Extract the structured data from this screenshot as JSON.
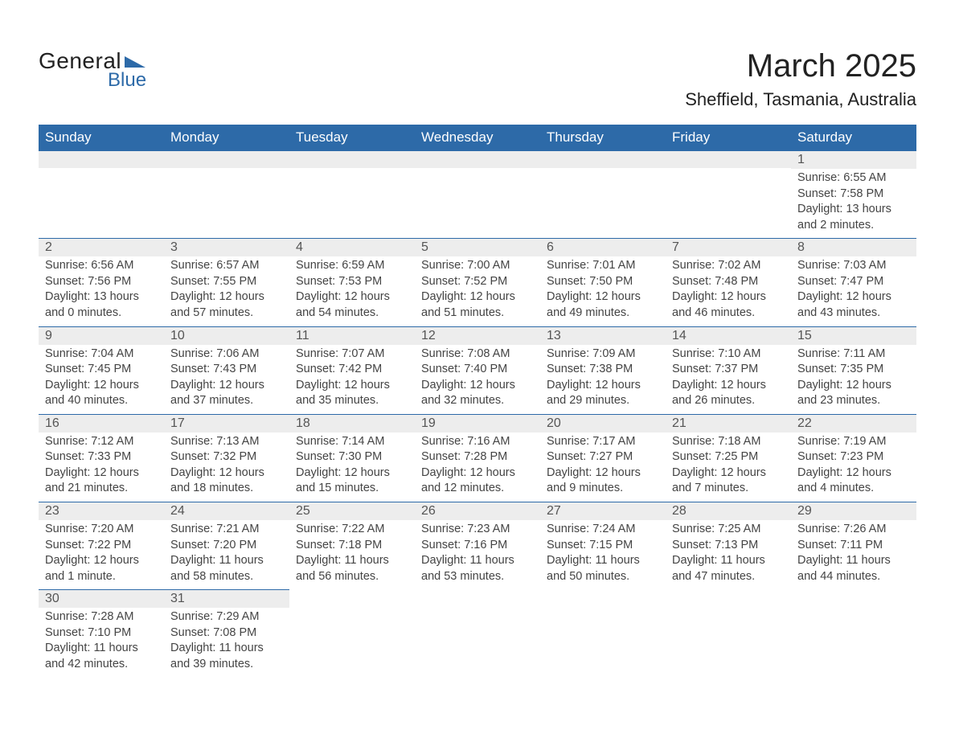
{
  "brand": {
    "text_general": "General",
    "text_blue": "Blue",
    "logo_color": "#2d6aa8"
  },
  "header": {
    "month_title": "March 2025",
    "location": "Sheffield, Tasmania, Australia"
  },
  "colors": {
    "header_bg": "#2d6aa8",
    "header_text": "#ffffff",
    "bar_bg": "#ededed",
    "body_bg": "#ffffff",
    "text": "#444444",
    "divider": "#2d6aa8"
  },
  "calendar": {
    "type": "table",
    "columns": [
      "Sunday",
      "Monday",
      "Tuesday",
      "Wednesday",
      "Thursday",
      "Friday",
      "Saturday"
    ],
    "first_weekday_index": 6,
    "days": [
      {
        "n": 1,
        "sunrise": "6:55 AM",
        "sunset": "7:58 PM",
        "daylight": "13 hours and 2 minutes."
      },
      {
        "n": 2,
        "sunrise": "6:56 AM",
        "sunset": "7:56 PM",
        "daylight": "13 hours and 0 minutes."
      },
      {
        "n": 3,
        "sunrise": "6:57 AM",
        "sunset": "7:55 PM",
        "daylight": "12 hours and 57 minutes."
      },
      {
        "n": 4,
        "sunrise": "6:59 AM",
        "sunset": "7:53 PM",
        "daylight": "12 hours and 54 minutes."
      },
      {
        "n": 5,
        "sunrise": "7:00 AM",
        "sunset": "7:52 PM",
        "daylight": "12 hours and 51 minutes."
      },
      {
        "n": 6,
        "sunrise": "7:01 AM",
        "sunset": "7:50 PM",
        "daylight": "12 hours and 49 minutes."
      },
      {
        "n": 7,
        "sunrise": "7:02 AM",
        "sunset": "7:48 PM",
        "daylight": "12 hours and 46 minutes."
      },
      {
        "n": 8,
        "sunrise": "7:03 AM",
        "sunset": "7:47 PM",
        "daylight": "12 hours and 43 minutes."
      },
      {
        "n": 9,
        "sunrise": "7:04 AM",
        "sunset": "7:45 PM",
        "daylight": "12 hours and 40 minutes."
      },
      {
        "n": 10,
        "sunrise": "7:06 AM",
        "sunset": "7:43 PM",
        "daylight": "12 hours and 37 minutes."
      },
      {
        "n": 11,
        "sunrise": "7:07 AM",
        "sunset": "7:42 PM",
        "daylight": "12 hours and 35 minutes."
      },
      {
        "n": 12,
        "sunrise": "7:08 AM",
        "sunset": "7:40 PM",
        "daylight": "12 hours and 32 minutes."
      },
      {
        "n": 13,
        "sunrise": "7:09 AM",
        "sunset": "7:38 PM",
        "daylight": "12 hours and 29 minutes."
      },
      {
        "n": 14,
        "sunrise": "7:10 AM",
        "sunset": "7:37 PM",
        "daylight": "12 hours and 26 minutes."
      },
      {
        "n": 15,
        "sunrise": "7:11 AM",
        "sunset": "7:35 PM",
        "daylight": "12 hours and 23 minutes."
      },
      {
        "n": 16,
        "sunrise": "7:12 AM",
        "sunset": "7:33 PM",
        "daylight": "12 hours and 21 minutes."
      },
      {
        "n": 17,
        "sunrise": "7:13 AM",
        "sunset": "7:32 PM",
        "daylight": "12 hours and 18 minutes."
      },
      {
        "n": 18,
        "sunrise": "7:14 AM",
        "sunset": "7:30 PM",
        "daylight": "12 hours and 15 minutes."
      },
      {
        "n": 19,
        "sunrise": "7:16 AM",
        "sunset": "7:28 PM",
        "daylight": "12 hours and 12 minutes."
      },
      {
        "n": 20,
        "sunrise": "7:17 AM",
        "sunset": "7:27 PM",
        "daylight": "12 hours and 9 minutes."
      },
      {
        "n": 21,
        "sunrise": "7:18 AM",
        "sunset": "7:25 PM",
        "daylight": "12 hours and 7 minutes."
      },
      {
        "n": 22,
        "sunrise": "7:19 AM",
        "sunset": "7:23 PM",
        "daylight": "12 hours and 4 minutes."
      },
      {
        "n": 23,
        "sunrise": "7:20 AM",
        "sunset": "7:22 PM",
        "daylight": "12 hours and 1 minute."
      },
      {
        "n": 24,
        "sunrise": "7:21 AM",
        "sunset": "7:20 PM",
        "daylight": "11 hours and 58 minutes."
      },
      {
        "n": 25,
        "sunrise": "7:22 AM",
        "sunset": "7:18 PM",
        "daylight": "11 hours and 56 minutes."
      },
      {
        "n": 26,
        "sunrise": "7:23 AM",
        "sunset": "7:16 PM",
        "daylight": "11 hours and 53 minutes."
      },
      {
        "n": 27,
        "sunrise": "7:24 AM",
        "sunset": "7:15 PM",
        "daylight": "11 hours and 50 minutes."
      },
      {
        "n": 28,
        "sunrise": "7:25 AM",
        "sunset": "7:13 PM",
        "daylight": "11 hours and 47 minutes."
      },
      {
        "n": 29,
        "sunrise": "7:26 AM",
        "sunset": "7:11 PM",
        "daylight": "11 hours and 44 minutes."
      },
      {
        "n": 30,
        "sunrise": "7:28 AM",
        "sunset": "7:10 PM",
        "daylight": "11 hours and 42 minutes."
      },
      {
        "n": 31,
        "sunrise": "7:29 AM",
        "sunset": "7:08 PM",
        "daylight": "11 hours and 39 minutes."
      }
    ],
    "labels": {
      "sunrise": "Sunrise:",
      "sunset": "Sunset:",
      "daylight": "Daylight:"
    },
    "fontsize": {
      "header": 17,
      "daynum": 16,
      "body": 14.5
    }
  }
}
